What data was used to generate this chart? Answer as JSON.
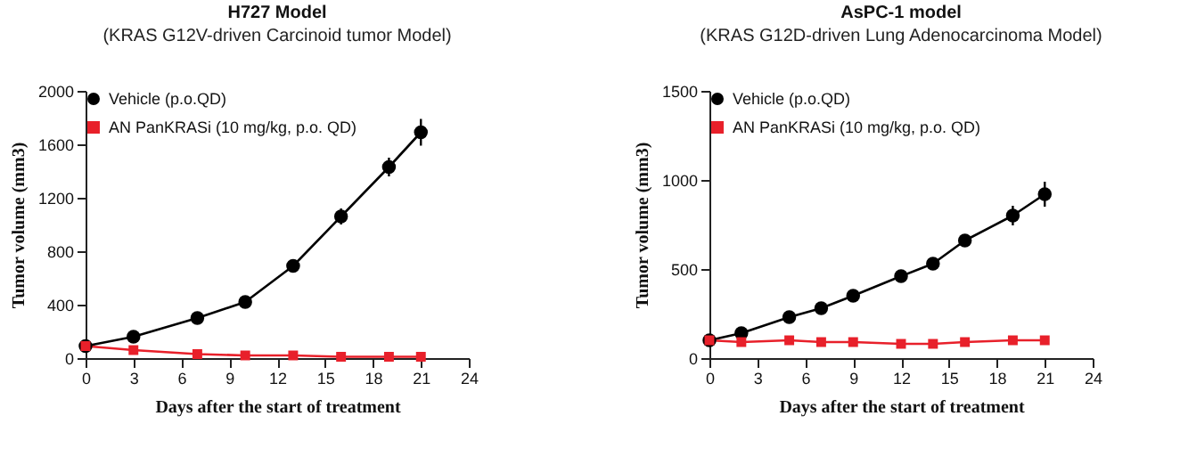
{
  "chart_data": [
    {
      "type": "line",
      "title": "H727 Model",
      "subtitle": "(KRAS G12V-driven Carcinoid tumor Model)",
      "xlabel": "Days after the start of treatment",
      "ylabel": "Tumor volume (mm3)",
      "xlim": [
        0,
        24
      ],
      "xticks": [
        0,
        3,
        6,
        9,
        12,
        15,
        18,
        21,
        24
      ],
      "ylim": [
        0,
        2000
      ],
      "yticks": [
        0,
        400,
        800,
        1200,
        1600,
        2000
      ],
      "legend": "top left",
      "grid": false,
      "series": [
        {
          "name": "Vehicle (p.o.QD)",
          "color": "#000000",
          "marker": "circle",
          "x": [
            0,
            3,
            7,
            10,
            13,
            16,
            19,
            21
          ],
          "values": [
            90,
            160,
            300,
            420,
            690,
            1060,
            1430,
            1690
          ],
          "errors": [
            null,
            null,
            null,
            null,
            null,
            60,
            70,
            100
          ]
        },
        {
          "name": "AN PanKRASi (10 mg/kg, p.o. QD)",
          "color": "#e8202a",
          "marker": "square",
          "x": [
            0,
            3,
            7,
            10,
            13,
            16,
            19,
            21
          ],
          "values": [
            90,
            60,
            30,
            20,
            20,
            10,
            10,
            10
          ]
        }
      ]
    },
    {
      "type": "line",
      "title": "AsPC-1 model",
      "subtitle": "(KRAS G12D-driven Lung Adenocarcinoma Model)",
      "xlabel": "Days after the start of treatment",
      "ylabel": "Tumor volume (mm3)",
      "xlim": [
        0,
        24
      ],
      "xticks": [
        0,
        3,
        6,
        9,
        12,
        15,
        18,
        21,
        24
      ],
      "ylim": [
        0,
        1500
      ],
      "yticks": [
        0,
        500,
        1000,
        1500
      ],
      "legend": "top left",
      "grid": false,
      "series": [
        {
          "name": "Vehicle (p.o.QD)",
          "color": "#000000",
          "marker": "circle",
          "x": [
            0,
            2,
            5,
            7,
            9,
            12,
            14,
            16,
            19,
            21
          ],
          "values": [
            100,
            140,
            230,
            280,
            350,
            460,
            530,
            660,
            800,
            920
          ],
          "errors": [
            null,
            null,
            null,
            null,
            null,
            null,
            null,
            20,
            55,
            70
          ]
        },
        {
          "name": "AN PanKRASi (10 mg/kg, p.o. QD)",
          "color": "#e8202a",
          "marker": "square",
          "x": [
            0,
            2,
            5,
            7,
            9,
            12,
            14,
            16,
            19,
            21
          ],
          "values": [
            100,
            90,
            100,
            90,
            90,
            80,
            80,
            90,
            100,
            100
          ]
        }
      ]
    }
  ]
}
